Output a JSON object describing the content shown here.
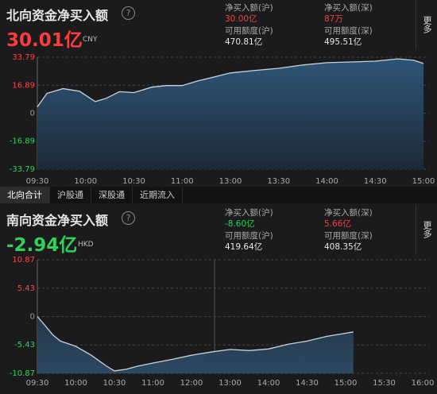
{
  "north": {
    "title": "北向资金净买入额",
    "net": "30.01亿",
    "currency": "CNY",
    "stats": [
      {
        "label": "净买入额(沪)",
        "value": "30.00亿"
      },
      {
        "label": "净买入额(深)",
        "value": "87万"
      },
      {
        "label": "可用额度(沪)",
        "value": "470.81亿"
      },
      {
        "label": "可用额度(深)",
        "value": "495.51亿"
      }
    ]
  },
  "tabs": [
    "北向合计",
    "沪股通",
    "深股通",
    "近期流入"
  ],
  "south": {
    "title": "南向资金净买入额",
    "net": "-2.94亿",
    "currency": "HKD",
    "stats": [
      {
        "label": "净买入额(沪)",
        "value": "-8.60亿"
      },
      {
        "label": "净买入额(深)",
        "value": "5.66亿"
      },
      {
        "label": "可用额度(沪)",
        "value": "419.64亿"
      },
      {
        "label": "可用额度(深)",
        "value": "408.35亿"
      }
    ]
  },
  "more": "更多",
  "chart_data": [
    {
      "type": "area",
      "color": "#c9d3dc",
      "x": [
        0,
        0.2,
        0.53,
        0.87,
        1.2,
        1.43,
        1.7,
        2,
        2.37,
        2.67,
        3,
        3.33,
        3.67,
        4,
        4.47,
        5,
        5.47,
        6,
        6.5,
        7,
        7.47,
        7.8,
        8
      ],
      "values": [
        3.8,
        12,
        14.8,
        13.3,
        7,
        9,
        13,
        12.4,
        15.7,
        16.7,
        16.7,
        19.5,
        21.9,
        24.3,
        25.7,
        27.1,
        29,
        30.5,
        30.9,
        31.4,
        32.8,
        31.9,
        30.01
      ],
      "xlim": [
        0,
        8
      ],
      "xticks": [
        {
          "value": 0,
          "label": "09:30"
        },
        {
          "value": 1,
          "label": "10:00"
        },
        {
          "value": 2,
          "label": "10:30"
        },
        {
          "value": 3,
          "label": "11:00"
        },
        {
          "value": 4,
          "label": "13:00"
        },
        {
          "value": 5,
          "label": "13:30"
        },
        {
          "value": 6,
          "label": "14:00"
        },
        {
          "value": 7,
          "label": "14:30"
        },
        {
          "value": 8,
          "label": "15:00"
        }
      ],
      "ylim": [
        -33.79,
        33.79
      ],
      "yticks": [
        33.79,
        16.89,
        0,
        -16.89,
        -33.79
      ],
      "grid": true
    },
    {
      "type": "area",
      "color": "#c9d3dc",
      "x": [
        0,
        0.2,
        0.4,
        0.6,
        1,
        1.4,
        1.8,
        2,
        2.3,
        2.6,
        3,
        3.5,
        4,
        4.5,
        5,
        5.5,
        6,
        6.5,
        7,
        7.5,
        8,
        8.2
      ],
      "values": [
        0,
        -1.7,
        -3.5,
        -4.7,
        -5.7,
        -7.4,
        -9.5,
        -10.4,
        -10.1,
        -9.5,
        -8.9,
        -8.2,
        -7.4,
        -6.8,
        -6.3,
        -6.5,
        -6.2,
        -5.3,
        -4.7,
        -3.8,
        -3.2,
        -2.94
      ],
      "xlim": [
        0,
        10
      ],
      "xticks": [
        {
          "value": 0,
          "label": "09:30"
        },
        {
          "value": 1,
          "label": "10:00"
        },
        {
          "value": 2,
          "label": "10:30"
        },
        {
          "value": 3,
          "label": "11:00"
        },
        {
          "value": 4,
          "label": "12:00"
        },
        {
          "value": 5,
          "label": "13:00"
        },
        {
          "value": 6,
          "label": "14:00"
        },
        {
          "value": 7,
          "label": "14:30"
        },
        {
          "value": 8,
          "label": "15:00"
        },
        {
          "value": 9,
          "label": "15:30"
        },
        {
          "value": 10,
          "label": "16:00"
        }
      ],
      "ylim": [
        -10.87,
        10.87
      ],
      "yticks": [
        10.87,
        5.43,
        0,
        -5.43,
        -10.87
      ],
      "grid": true
    }
  ]
}
